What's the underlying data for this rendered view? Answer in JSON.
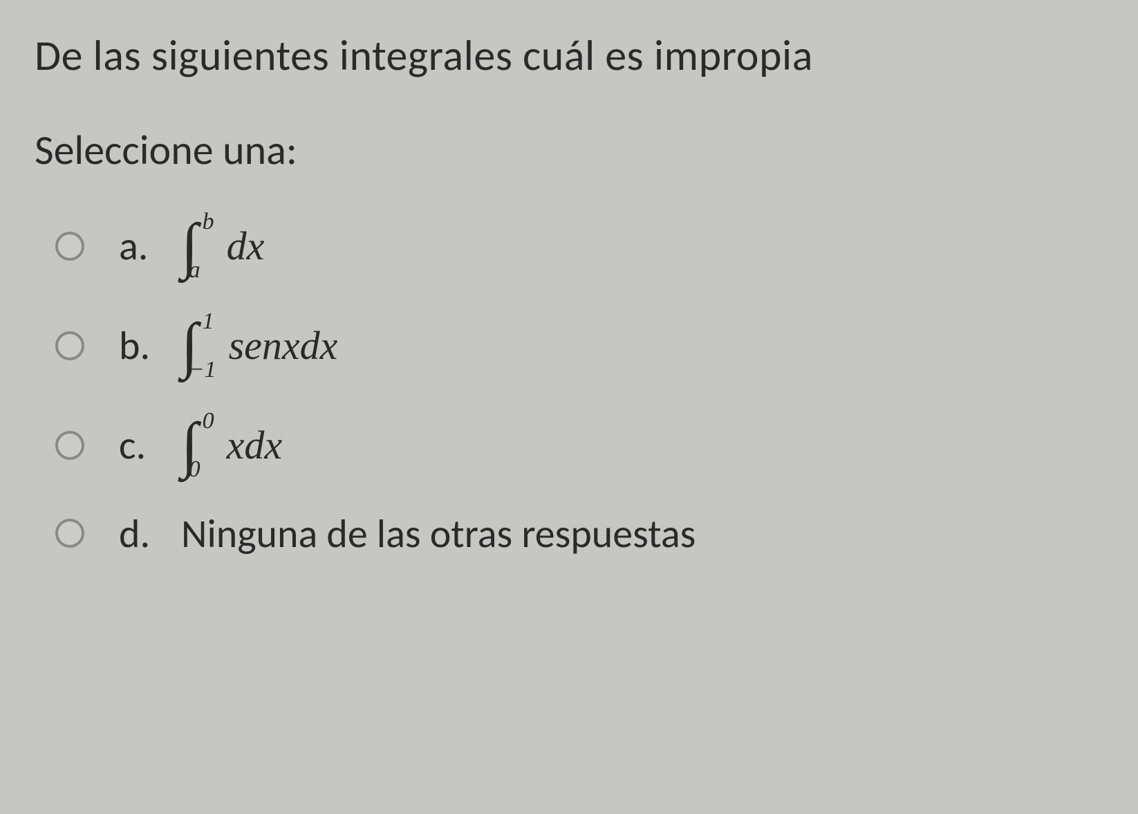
{
  "question": "De las siguientes integrales cuál es impropia",
  "prompt": "Seleccione una:",
  "options": [
    {
      "letter": "a.",
      "upper": "b",
      "lower": "a",
      "integrand": "dx"
    },
    {
      "letter": "b.",
      "upper": "1",
      "lower": "−1",
      "integrand": "senxdx"
    },
    {
      "letter": "c.",
      "upper": "0",
      "lower": "0",
      "integrand": "xdx"
    },
    {
      "letter": "d.",
      "text": "Ninguna de las otras respuestas"
    }
  ],
  "colors": {
    "background": "#c8c8c5",
    "text": "#2a2a2a",
    "radio_border": "#8a8a85"
  },
  "font_sizes": {
    "question": 62,
    "prompt": 60,
    "option_letter": 58,
    "integrand": 58,
    "bounds": 34,
    "integral_sign": 90
  }
}
